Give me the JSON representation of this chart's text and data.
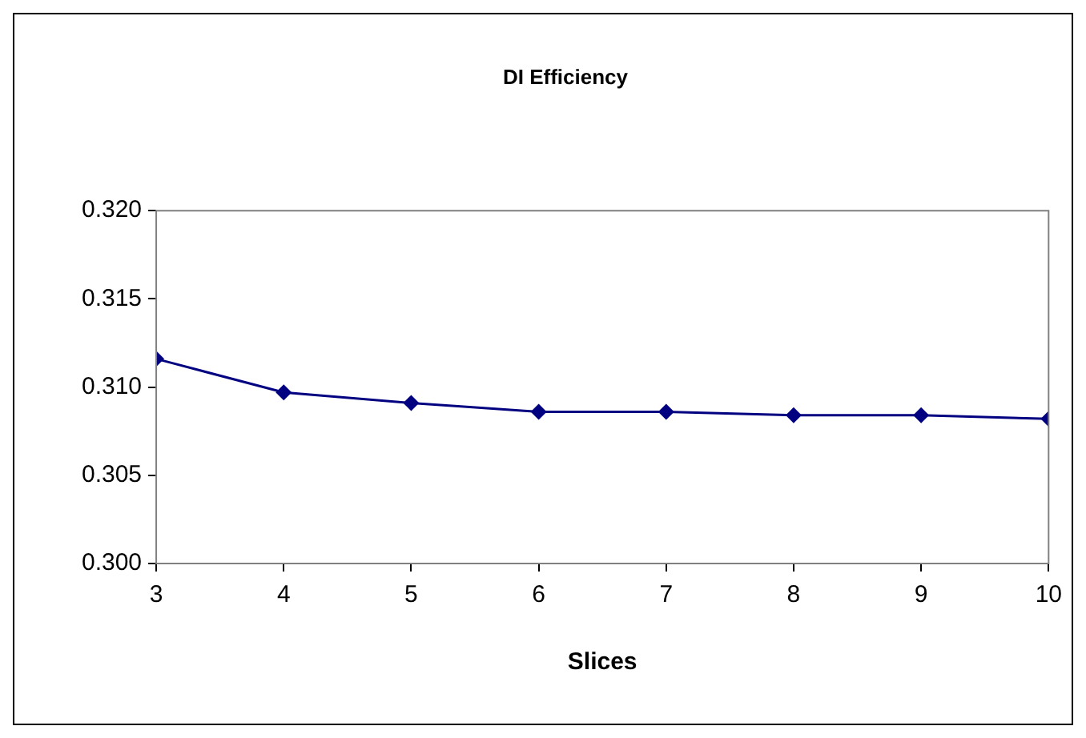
{
  "chart_data": {
    "type": "line",
    "title": "DI Efficiency",
    "xlabel": "Slices",
    "x": [
      3,
      4,
      5,
      6,
      7,
      8,
      9,
      10
    ],
    "series": [
      {
        "color": "#000080",
        "values": [
          0.3116,
          0.3097,
          0.3091,
          0.3086,
          0.3086,
          0.3084,
          0.3084,
          0.3082
        ]
      }
    ],
    "xlim": [
      3,
      10
    ],
    "xticks": [
      3,
      4,
      5,
      6,
      7,
      8,
      9,
      10
    ],
    "ylim": [
      0.3,
      0.32
    ],
    "yticks": [
      {
        "value": 0.3,
        "label": "0.300"
      },
      {
        "value": 0.305,
        "label": "0.305"
      },
      {
        "value": 0.31,
        "label": "0.310"
      },
      {
        "value": 0.315,
        "label": "0.315"
      },
      {
        "value": 0.32,
        "label": "0.320"
      }
    ],
    "grid": false,
    "legend": false,
    "marker": "diamond",
    "line_style": "solid"
  }
}
